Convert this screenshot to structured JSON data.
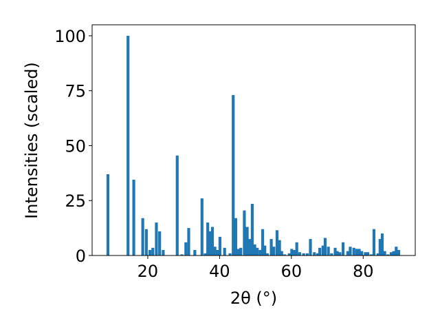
{
  "chart_data": {
    "type": "bar",
    "xlabel": "2θ (°)",
    "ylabel": "Intensities (scaled)",
    "xlim": [
      4.5,
      94.5
    ],
    "ylim": [
      0,
      105
    ],
    "xticks": [
      20,
      40,
      60,
      80
    ],
    "yticks": [
      0,
      25,
      50,
      75,
      100
    ],
    "grid": false,
    "bar_color": "#1f77b4",
    "x": [
      8.9,
      14.5,
      16.1,
      18.6,
      19.6,
      20.6,
      21.4,
      22.4,
      23.3,
      24.3,
      28.2,
      29.5,
      30.6,
      31.4,
      33.1,
      35.1,
      36.0,
      36.7,
      37.4,
      38.0,
      38.7,
      39.4,
      40.1,
      41.4,
      42.9,
      43.8,
      44.5,
      45.3,
      45.9,
      46.9,
      47.7,
      48.4,
      49.1,
      49.8,
      50.5,
      51.3,
      52.0,
      52.6,
      53.3,
      54.4,
      55.1,
      56.0,
      56.7,
      57.3,
      58.1,
      59.4,
      60.1,
      60.8,
      61.5,
      62.3,
      63.4,
      64.4,
      65.3,
      66.4,
      67.3,
      67.9,
      68.8,
      69.4,
      70.3,
      71.2,
      72.2,
      72.8,
      73.5,
      74.4,
      75.7,
      76.4,
      77.4,
      78.2,
      78.9,
      79.6,
      80.6,
      81.3,
      82.2,
      83.0,
      84.1,
      84.7,
      85.3,
      86.0,
      86.9,
      87.8,
      88.5,
      89.2,
      89.9
    ],
    "values": [
      37,
      100,
      34.5,
      17,
      12,
      2.5,
      3.5,
      15,
      11,
      2.5,
      45.5,
      0.5,
      6,
      12.5,
      2.5,
      26,
      1,
      15,
      11,
      13,
      4,
      2.5,
      8.5,
      3.5,
      1,
      73,
      17,
      3,
      3.5,
      20.5,
      13,
      7.5,
      23.5,
      5,
      3.5,
      2.5,
      12,
      4.5,
      1,
      7.5,
      4,
      11.5,
      7,
      2,
      0.5,
      1,
      3,
      2.5,
      6,
      1.5,
      1,
      1,
      7.5,
      1.5,
      1,
      3.5,
      4.5,
      8,
      4,
      1,
      3.5,
      2,
      1.5,
      6,
      2,
      4,
      3.5,
      3,
      3,
      2,
      1.5,
      1.5,
      0.5,
      12,
      1,
      7.5,
      10,
      2,
      0.5,
      1.5,
      2,
      4,
      2.5
    ]
  }
}
